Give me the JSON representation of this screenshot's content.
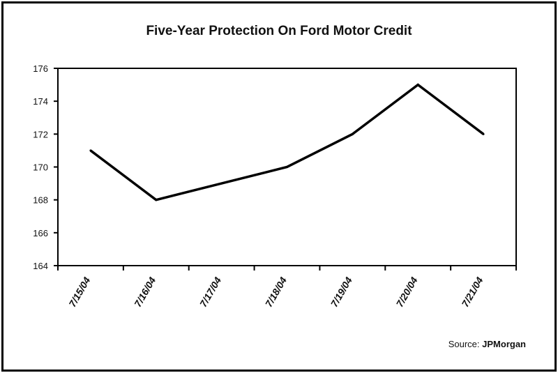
{
  "chart_data": {
    "type": "line",
    "title": "Five-Year Protection On Ford Motor Credit",
    "x": [
      "7/15/04",
      "7/16/04",
      "7/17/04",
      "7/18/04",
      "7/19/04",
      "7/20/04",
      "7/21/04"
    ],
    "series": [
      {
        "values": [
          171,
          168,
          169,
          170,
          172,
          175,
          172
        ]
      }
    ],
    "ylim": [
      164,
      176
    ],
    "yticks": [
      "164",
      "166",
      "168",
      "170",
      "172",
      "174",
      "176"
    ],
    "grid": false,
    "line_color": "#000000"
  },
  "source": {
    "label": "Source:",
    "name": "JPMorgan"
  }
}
